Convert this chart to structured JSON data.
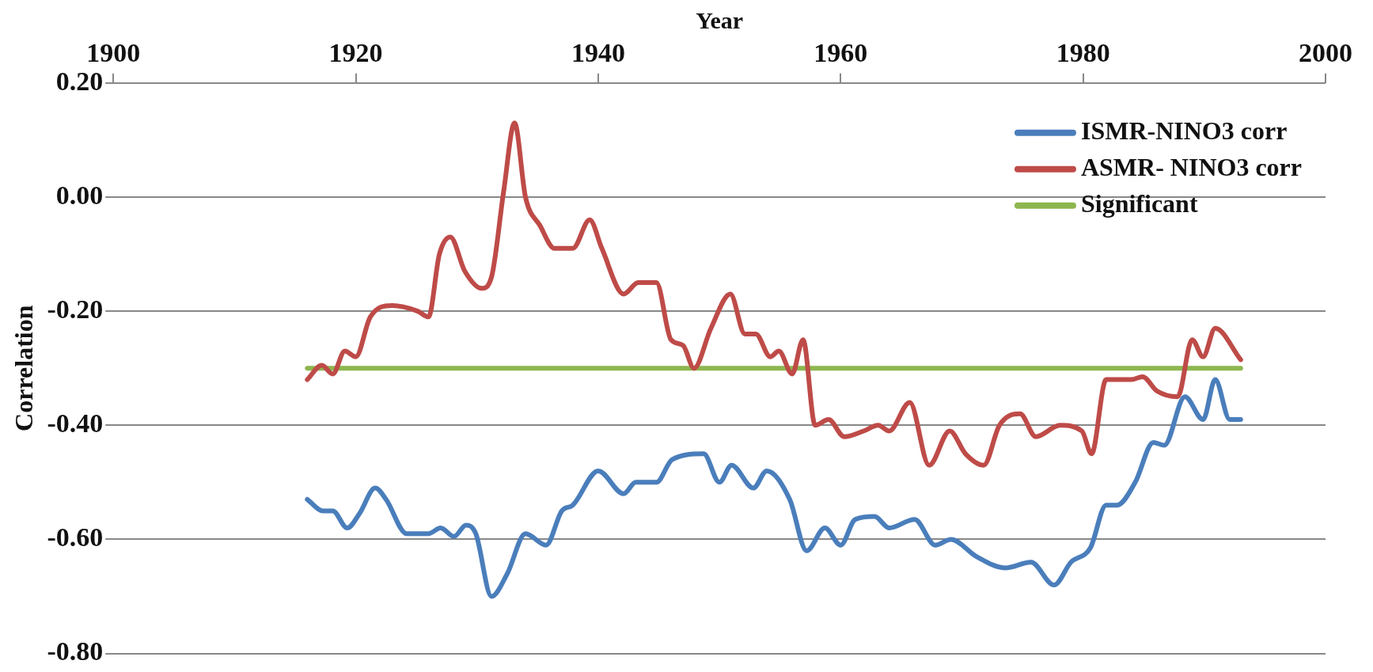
{
  "chart_data": {
    "type": "line",
    "xlabel": "Year",
    "ylabel": "Correlation",
    "xlim": [
      1900,
      2000
    ],
    "xticks": [
      1900,
      1920,
      1940,
      1960,
      1980,
      2000
    ],
    "ylim": [
      -0.8,
      0.2
    ],
    "yticks": [
      {
        "value": -0.8,
        "label": "-0.80"
      },
      {
        "value": -0.6,
        "label": "-0.60"
      },
      {
        "value": -0.4,
        "label": "-0.40"
      },
      {
        "value": -0.2,
        "label": "-0.20"
      },
      {
        "value": 0,
        "label": "0.00"
      },
      {
        "value": 0.2,
        "label": "0.20"
      }
    ],
    "grid": "y",
    "legend": "top right",
    "marker": "none",
    "line_style": "solid",
    "series": [
      {
        "name": "ISMR-NINO3 corr",
        "color": "#4a7ebb",
        "x": [
          1916.0,
          1917.3,
          1918.1,
          1919.3,
          1920.3,
          1921.6,
          1922.5,
          1924.2,
          1926.0,
          1927.0,
          1928.1,
          1929.1,
          1929.9,
          1931.2,
          1932.5,
          1934.0,
          1935.7,
          1937.0,
          1937.9,
          1940.0,
          1942.1,
          1943.1,
          1944.8,
          1946.1,
          1948.7,
          1950.0,
          1951.0,
          1952.8,
          1953.9,
          1955.8,
          1957.2,
          1958.7,
          1960.0,
          1961.2,
          1962.8,
          1964.0,
          1966.1,
          1967.8,
          1969.1,
          1971.2,
          1973.6,
          1975.7,
          1977.6,
          1979.0,
          1980.6,
          1981.9,
          1982.8,
          1984.3,
          1985.8,
          1986.7,
          1988.4,
          1989.9,
          1990.9,
          1992.1,
          1993.0
        ],
        "values": [
          -0.53,
          -0.55,
          -0.55,
          -0.58,
          -0.555,
          -0.51,
          -0.53,
          -0.59,
          -0.59,
          -0.58,
          -0.595,
          -0.575,
          -0.59,
          -0.7,
          -0.66,
          -0.59,
          -0.61,
          -0.55,
          -0.54,
          -0.48,
          -0.52,
          -0.5,
          -0.5,
          -0.46,
          -0.45,
          -0.5,
          -0.47,
          -0.51,
          -0.48,
          -0.53,
          -0.62,
          -0.58,
          -0.61,
          -0.565,
          -0.56,
          -0.58,
          -0.565,
          -0.61,
          -0.6,
          -0.63,
          -0.65,
          -0.64,
          -0.68,
          -0.64,
          -0.615,
          -0.54,
          -0.54,
          -0.5,
          -0.43,
          -0.435,
          -0.35,
          -0.39,
          -0.32,
          -0.39,
          -0.39
        ]
      },
      {
        "name": "ASMR- NINO3 corr",
        "color": "#be4b48",
        "x": [
          1916.0,
          1917.2,
          1918.1,
          1919.1,
          1920.0,
          1921.2,
          1923.0,
          1925.1,
          1926.0,
          1926.9,
          1927.8,
          1929.0,
          1930.4,
          1931.2,
          1932.2,
          1933.1,
          1934.0,
          1935.2,
          1936.4,
          1937.9,
          1939.3,
          1940.3,
          1942.1,
          1943.3,
          1944.8,
          1946.0,
          1947.0,
          1947.9,
          1949.3,
          1950.9,
          1952.1,
          1953.0,
          1954.2,
          1954.9,
          1956.0,
          1956.9,
          1957.9,
          1959.0,
          1960.3,
          1961.9,
          1963.1,
          1964.0,
          1965.7,
          1967.3,
          1969.0,
          1970.3,
          1971.8,
          1973.1,
          1974.8,
          1976.1,
          1978.1,
          1979.9,
          1980.7,
          1981.9,
          1984.0,
          1984.9,
          1986.1,
          1987.8,
          1989.0,
          1989.9,
          1990.9,
          1993.0
        ],
        "values": [
          -0.32,
          -0.295,
          -0.31,
          -0.27,
          -0.28,
          -0.21,
          -0.19,
          -0.2,
          -0.21,
          -0.1,
          -0.07,
          -0.13,
          -0.16,
          -0.14,
          0.01,
          0.13,
          0.0,
          -0.05,
          -0.09,
          -0.09,
          -0.04,
          -0.09,
          -0.17,
          -0.15,
          -0.15,
          -0.25,
          -0.26,
          -0.3,
          -0.23,
          -0.17,
          -0.24,
          -0.24,
          -0.28,
          -0.27,
          -0.31,
          -0.25,
          -0.4,
          -0.39,
          -0.42,
          -0.41,
          -0.4,
          -0.41,
          -0.36,
          -0.47,
          -0.41,
          -0.45,
          -0.47,
          -0.4,
          -0.38,
          -0.42,
          -0.4,
          -0.41,
          -0.45,
          -0.32,
          -0.32,
          -0.315,
          -0.34,
          -0.35,
          -0.25,
          -0.28,
          -0.23,
          -0.285
        ]
      },
      {
        "name": "Significant",
        "color": "#8db64f",
        "x": [
          1916,
          1993
        ],
        "values": [
          -0.3,
          -0.3
        ]
      }
    ]
  }
}
